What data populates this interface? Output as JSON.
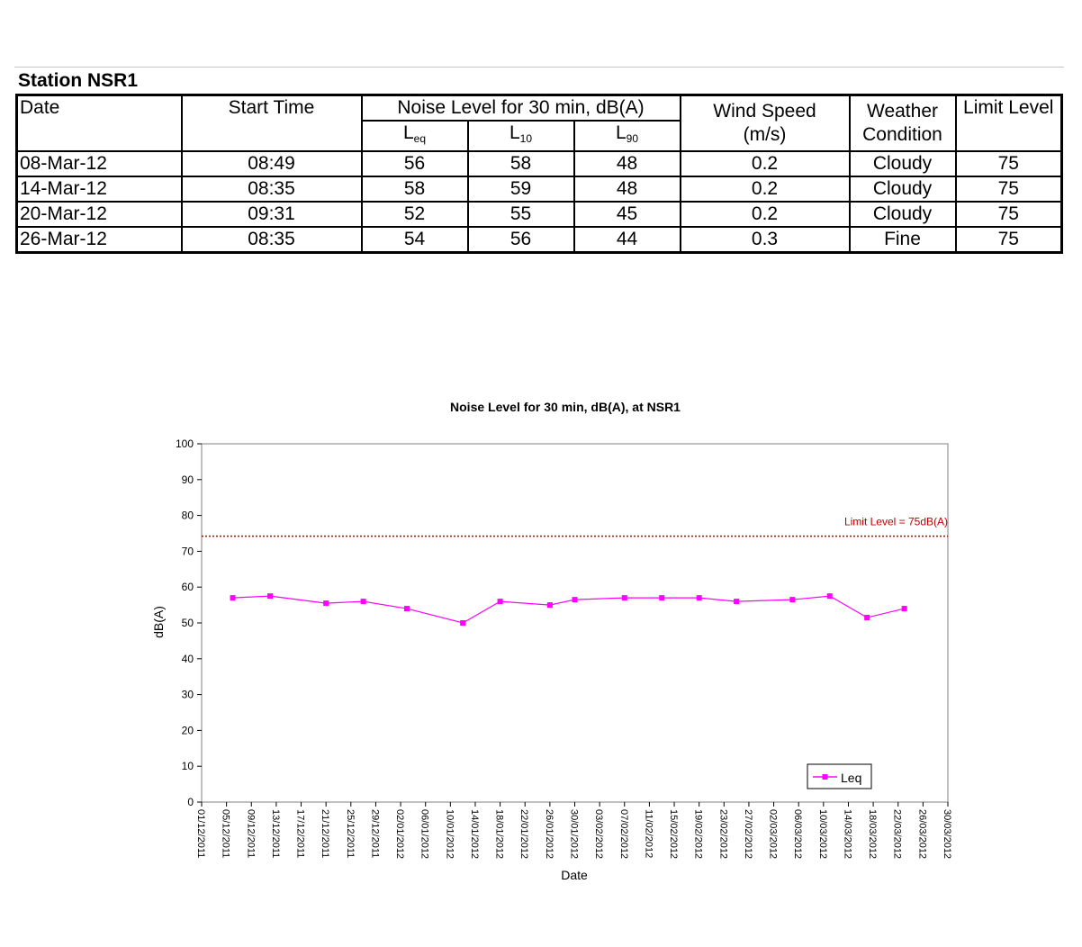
{
  "table": {
    "title": "Station NSR1",
    "headers": {
      "date": "Date",
      "start_time": "Start Time",
      "noise_level": "Noise Level for 30 min, dB(A)",
      "leq_main": "L",
      "leq_sub": "eq",
      "l10_main": "L",
      "l10_sub": "10",
      "l90_main": "L",
      "l90_sub": "90",
      "wind_line1": "Wind Speed",
      "wind_line2": "(m/s)",
      "weather_line1": "Weather",
      "weather_line2": "Condition",
      "limit": "Limit Level"
    },
    "rows": [
      {
        "date": "08-Mar-12",
        "start": "08:49",
        "leq": "56",
        "l10": "58",
        "l90": "48",
        "wind": "0.2",
        "weather": "Cloudy",
        "limit": "75"
      },
      {
        "date": "14-Mar-12",
        "start": "08:35",
        "leq": "58",
        "l10": "59",
        "l90": "48",
        "wind": "0.2",
        "weather": "Cloudy",
        "limit": "75"
      },
      {
        "date": "20-Mar-12",
        "start": "09:31",
        "leq": "52",
        "l10": "55",
        "l90": "45",
        "wind": "0.2",
        "weather": "Cloudy",
        "limit": "75"
      },
      {
        "date": "26-Mar-12",
        "start": "08:35",
        "leq": "54",
        "l10": "56",
        "l90": "44",
        "wind": "0.3",
        "weather": "Fine",
        "limit": "75"
      }
    ]
  },
  "chart_data": {
    "type": "line",
    "title": "Noise Level for 30 min, dB(A), at NSR1",
    "xlabel": "Date",
    "ylabel": "dB(A)",
    "ylim": [
      0,
      100
    ],
    "yticks": [
      0,
      10,
      20,
      30,
      40,
      50,
      60,
      70,
      80,
      90,
      100
    ],
    "xlim": [
      "2011-12-01",
      "2012-03-30"
    ],
    "xtick_labels": [
      "01/12/2011",
      "05/12/2011",
      "09/12/2011",
      "13/12/2011",
      "17/12/2011",
      "21/12/2011",
      "25/12/2011",
      "29/12/2011",
      "02/01/2012",
      "06/01/2012",
      "10/01/2012",
      "14/01/2012",
      "18/01/2012",
      "22/01/2012",
      "26/01/2012",
      "30/01/2012",
      "03/02/2012",
      "07/02/2012",
      "11/02/2012",
      "15/02/2012",
      "19/02/2012",
      "23/02/2012",
      "27/02/2012",
      "02/03/2012",
      "06/03/2012",
      "10/03/2012",
      "14/03/2012",
      "18/03/2012",
      "22/03/2012",
      "26/03/2012",
      "30/03/2012"
    ],
    "grid": false,
    "legend": {
      "position": "bottom-right",
      "entries": [
        "Leq"
      ]
    },
    "series": [
      {
        "name": "Leq",
        "color": "#ff00ff",
        "marker": "square",
        "x": [
          "2011-12-06",
          "2011-12-12",
          "2011-12-21",
          "2011-12-27",
          "2012-01-03",
          "2012-01-12",
          "2012-01-18",
          "2012-01-26",
          "2012-01-30",
          "2012-02-07",
          "2012-02-13",
          "2012-02-19",
          "2012-02-25",
          "2012-03-05",
          "2012-03-11",
          "2012-03-17",
          "2012-03-23"
        ],
        "y": [
          57,
          57.5,
          55.5,
          56,
          54,
          50,
          56,
          55,
          56.5,
          57,
          57,
          57,
          56,
          56.5,
          57.5,
          51.5,
          54
        ]
      }
    ],
    "reference_lines": [
      {
        "y": 74.2,
        "label": "Limit Level = 75dB(A)",
        "color": "#c00000",
        "style": "dotted"
      }
    ]
  }
}
